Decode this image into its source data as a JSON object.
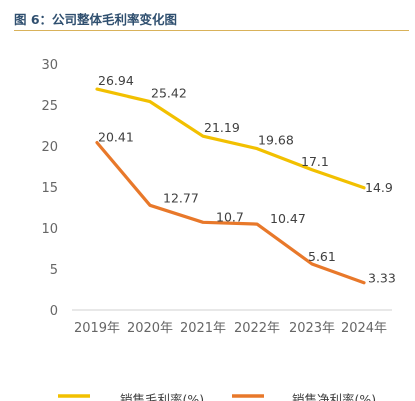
{
  "figure_title": "图 6：公司整体毛利率变化图",
  "colors": {
    "title": "#2f4f6f",
    "rule": "#d9b25a",
    "series1": "#f2c000",
    "series2": "#e8782a"
  },
  "chart_data": {
    "type": "line",
    "title": "",
    "xlabel": "",
    "ylabel": "",
    "categories": [
      "2019年",
      "2020年",
      "2021年",
      "2022年",
      "2023年",
      "2024年"
    ],
    "ylim": [
      0,
      30
    ],
    "yticks": [
      0,
      5,
      10,
      15,
      20,
      25,
      30
    ],
    "grid": false,
    "legend": "bottom",
    "series": [
      {
        "name": "销售毛利率(%)",
        "color": "#f2c000",
        "values": [
          26.94,
          25.42,
          21.19,
          19.68,
          17.1,
          14.9
        ],
        "labels": [
          "26.94",
          "25.42",
          "21.19",
          "19.68",
          "17.1",
          "14.9"
        ]
      },
      {
        "name": "销售净利率(%)",
        "color": "#e8782a",
        "values": [
          20.41,
          12.77,
          10.7,
          10.47,
          5.61,
          3.33
        ],
        "labels": [
          "20.41",
          "12.77",
          "10.7",
          "10.47",
          "5.61",
          "3.33"
        ]
      }
    ]
  }
}
